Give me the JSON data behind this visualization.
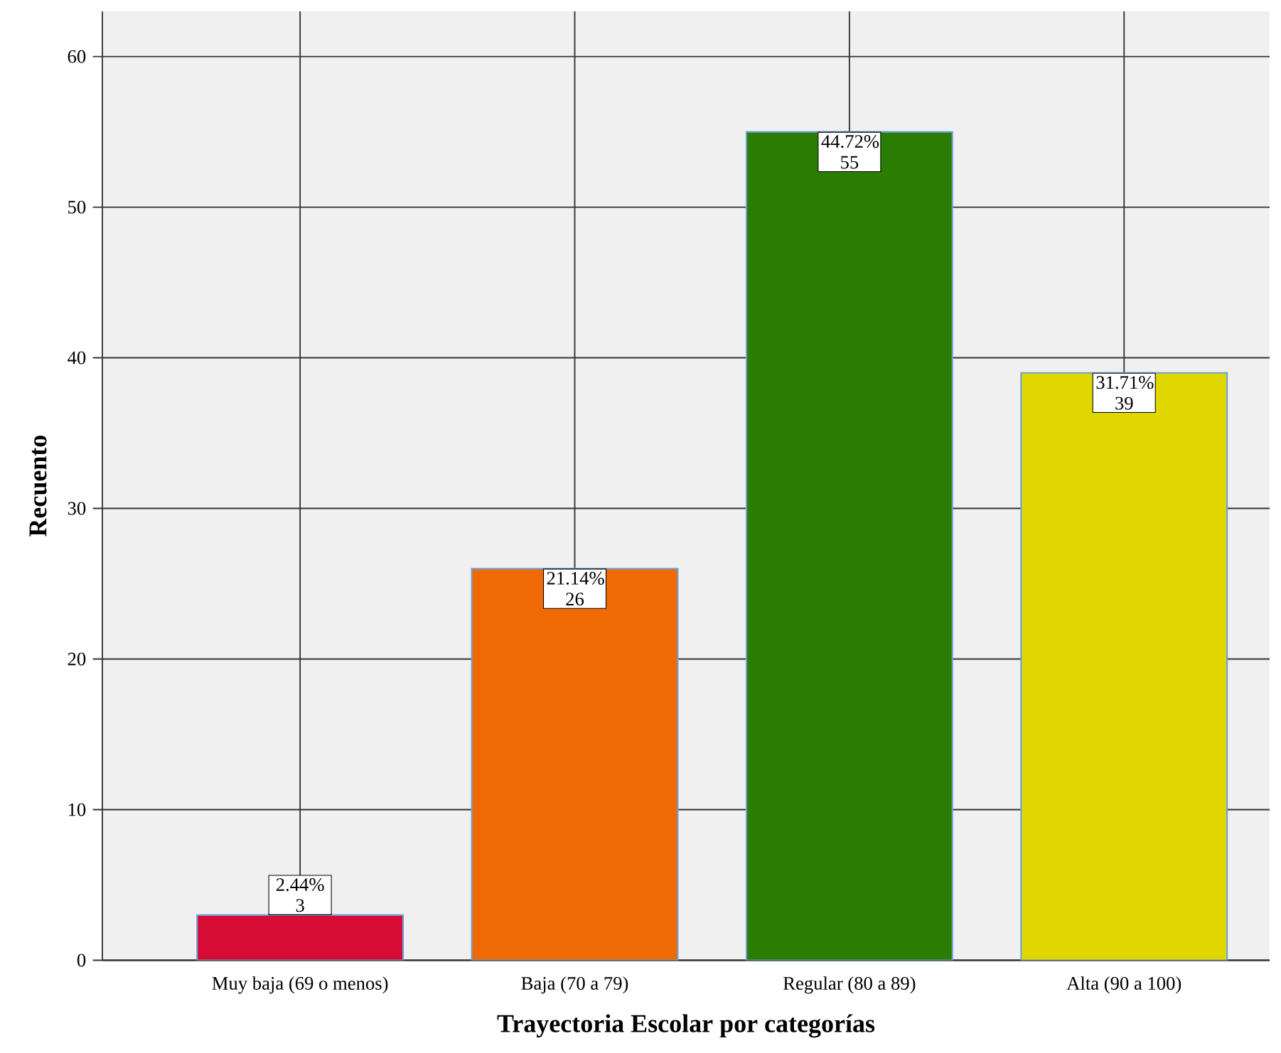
{
  "chart_data": {
    "type": "bar",
    "xlabel": "Trayectoria Escolar por categorías",
    "ylabel": "Recuento",
    "categories": [
      "Muy baja (69 o menos)",
      "Baja (70 a 79)",
      "Regular (80 a 89)",
      "Alta (90 a 100)"
    ],
    "values": [
      3,
      26,
      55,
      39
    ],
    "colors": [
      "#d70c34",
      "#ef6a05",
      "#2a7d00",
      "#e0d700"
    ],
    "value_labels": [
      "2.44% 3",
      "21.14% 26",
      "44.72% 55",
      "31.71% 39"
    ],
    "ylim": [
      0,
      63
    ],
    "yticks": [
      0,
      10,
      20,
      30,
      40,
      50,
      60
    ],
    "grid": true
  }
}
